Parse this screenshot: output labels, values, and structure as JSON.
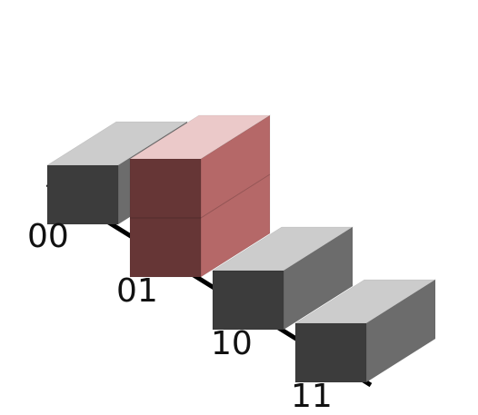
{
  "labels": [
    "00",
    "01",
    "10",
    "11"
  ],
  "chart_data": {
    "type": "bar",
    "categories": [
      "00",
      "01",
      "10",
      "11"
    ],
    "values": [
      1,
      2,
      1,
      1
    ],
    "highlight_index": 1
  },
  "colors": {
    "gray_top": "#cccccc",
    "gray_front": "#3c3c3c",
    "gray_right": "#6c6c6c",
    "red_top": "#ebc9c9",
    "red_front": "#663636",
    "red_right": "#b56868",
    "baseline": "#000000"
  }
}
